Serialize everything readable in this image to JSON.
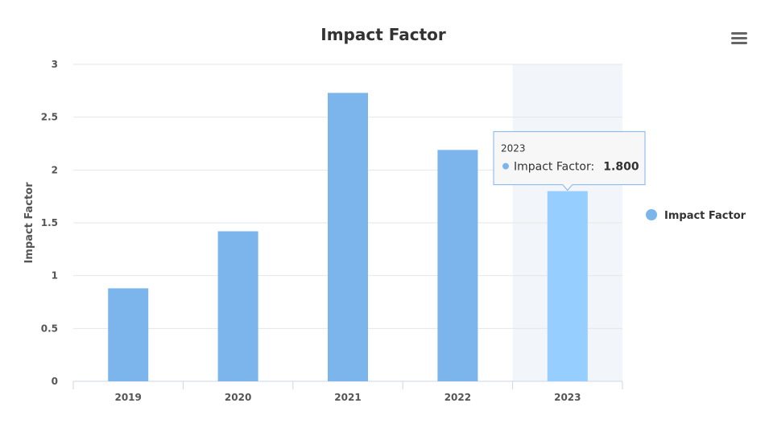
{
  "chart_data": {
    "type": "bar",
    "title": "Impact Factor",
    "xlabel": "",
    "ylabel": "Impact Factor",
    "categories": [
      "2019",
      "2020",
      "2021",
      "2022",
      "2023"
    ],
    "series": [
      {
        "name": "Impact Factor",
        "values": [
          0.88,
          1.42,
          2.73,
          2.19,
          1.8
        ],
        "color": "#7cb5ec",
        "hover_color": "#95ceff"
      }
    ],
    "ylim": [
      0,
      3
    ],
    "yticks": [
      "0",
      "0.5",
      "1",
      "1.5",
      "2",
      "2.5",
      "3"
    ],
    "grid": true,
    "legend_position": "right",
    "highlighted_category": "2023",
    "tooltip": {
      "category": "2023",
      "series_label": "Impact Factor:",
      "value_text": "1.800"
    }
  },
  "controls": {
    "menu_icon": "hamburger-menu-icon"
  }
}
